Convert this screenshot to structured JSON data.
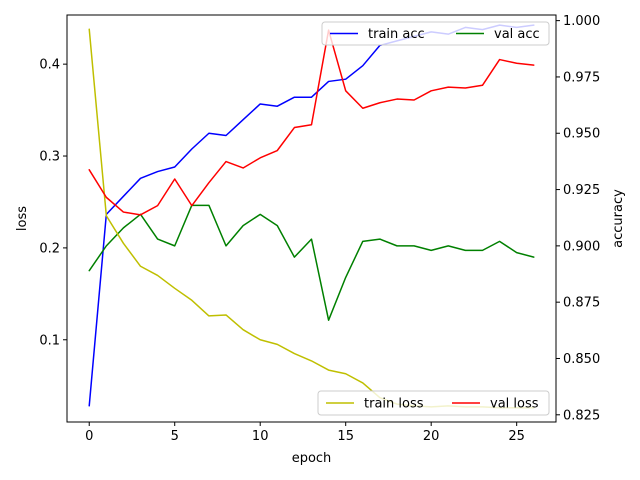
{
  "chart_data": {
    "type": "line",
    "xlabel": "epoch",
    "ylabel_left": "loss",
    "ylabel_right": "accuracy",
    "xlim": [
      -1.3,
      27.3
    ],
    "ylim_left": [
      0.0105,
      0.4535
    ],
    "ylim_right": [
      0.8218,
      1.0025
    ],
    "x_ticks": [
      0,
      5,
      10,
      15,
      20,
      25
    ],
    "y_ticks_left": [
      0.1,
      0.2,
      0.3,
      0.4
    ],
    "y_ticks_right": [
      0.825,
      0.85,
      0.875,
      0.9,
      0.925,
      0.95,
      0.975,
      1.0
    ],
    "grid": false,
    "x": [
      0,
      1,
      2,
      3,
      4,
      5,
      6,
      7,
      8,
      9,
      10,
      11,
      12,
      13,
      14,
      15,
      16,
      17,
      18,
      19,
      20,
      21,
      22,
      23,
      24,
      25,
      26
    ],
    "series": [
      {
        "name": "train acc",
        "axis": "right",
        "color": "#0000ff",
        "values": [
          0.829,
          0.914,
          0.922,
          0.93,
          0.933,
          0.935,
          0.943,
          0.95,
          0.949,
          0.956,
          0.963,
          0.962,
          0.966,
          0.966,
          0.973,
          0.974,
          0.98,
          0.989,
          0.991,
          0.993,
          0.995,
          0.994,
          0.997,
          0.996,
          0.998,
          0.997,
          0.998
        ]
      },
      {
        "name": "val acc",
        "axis": "right",
        "color": "#008000",
        "values": [
          0.889,
          0.9,
          0.908,
          0.914,
          0.903,
          0.9,
          0.918,
          0.918,
          0.9,
          0.909,
          0.914,
          0.909,
          0.895,
          0.903,
          0.867,
          0.886,
          0.902,
          0.903,
          0.9,
          0.9,
          0.898,
          0.9,
          0.898,
          0.898,
          0.902,
          0.897,
          0.895
        ]
      },
      {
        "name": "train loss",
        "axis": "left",
        "color": "#bfbf00",
        "values": [
          0.438,
          0.235,
          0.205,
          0.18,
          0.17,
          0.156,
          0.143,
          0.126,
          0.127,
          0.111,
          0.1,
          0.095,
          0.085,
          0.077,
          0.067,
          0.063,
          0.053,
          0.037,
          0.03,
          0.028,
          0.027,
          0.028,
          0.027,
          0.027,
          0.026,
          0.026,
          0.026
        ]
      },
      {
        "name": "val loss",
        "axis": "left",
        "color": "#ff0000",
        "values": [
          0.285,
          0.255,
          0.239,
          0.236,
          0.246,
          0.275,
          0.246,
          0.271,
          0.294,
          0.287,
          0.298,
          0.306,
          0.331,
          0.334,
          0.437,
          0.371,
          0.352,
          0.358,
          0.362,
          0.361,
          0.371,
          0.375,
          0.374,
          0.377,
          0.405,
          0.401,
          0.399
        ]
      }
    ],
    "legend_upper": {
      "location": "upper right",
      "entries": [
        "train acc",
        "val acc"
      ]
    },
    "legend_lower": {
      "location": "lower right",
      "entries": [
        "train loss",
        "val loss"
      ]
    }
  }
}
